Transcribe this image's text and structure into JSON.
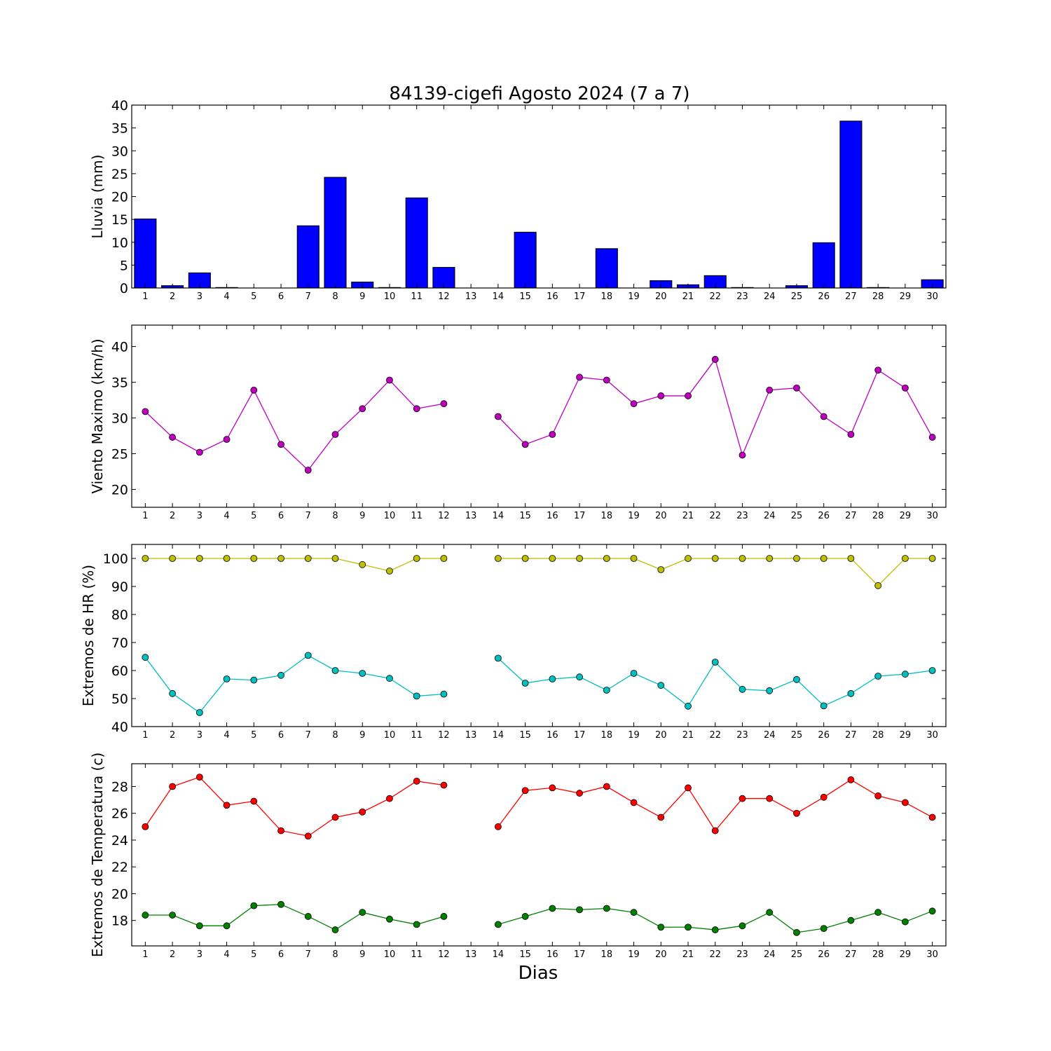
{
  "figure": {
    "title": "84139-cigefi Agosto 2024  (7 a 7)",
    "xlabel": "Dias"
  },
  "chart_data": [
    {
      "type": "bar",
      "ylabel": "Lluvia (mm)",
      "ylim": [
        0,
        40
      ],
      "yticks": [
        0,
        5,
        10,
        15,
        20,
        25,
        30,
        35,
        40
      ],
      "categories": [
        1,
        2,
        3,
        4,
        5,
        6,
        7,
        8,
        9,
        10,
        11,
        12,
        13,
        14,
        15,
        16,
        17,
        18,
        19,
        20,
        21,
        22,
        23,
        24,
        25,
        26,
        27,
        28,
        29,
        30
      ],
      "series": [
        {
          "color": "#0000ff",
          "values": [
            15.1,
            0.5,
            3.3,
            0.1,
            0,
            0,
            13.6,
            24.2,
            1.3,
            0.1,
            19.7,
            4.5,
            0,
            0,
            12.2,
            0,
            0,
            8.6,
            0,
            1.6,
            0.7,
            2.7,
            0.1,
            0,
            0.5,
            9.9,
            36.5,
            0.1,
            0,
            1.8
          ]
        }
      ]
    },
    {
      "type": "line",
      "ylabel": "Viento Maximo (km/h)",
      "ylim": [
        17.5,
        43
      ],
      "yticks": [
        20,
        25,
        30,
        35,
        40
      ],
      "x": [
        1,
        2,
        3,
        4,
        5,
        6,
        7,
        8,
        9,
        10,
        11,
        12,
        13,
        14,
        15,
        16,
        17,
        18,
        19,
        20,
        21,
        22,
        23,
        24,
        25,
        26,
        27,
        28,
        29,
        30
      ],
      "series": [
        {
          "color": "#bf00bf",
          "values": [
            30.9,
            27.3,
            25.2,
            27.0,
            33.9,
            26.3,
            22.7,
            27.7,
            31.3,
            35.3,
            31.3,
            32.0,
            null,
            30.2,
            26.3,
            27.7,
            35.7,
            35.3,
            32.0,
            33.1,
            33.1,
            38.2,
            24.8,
            33.9,
            34.2,
            30.2,
            27.7,
            36.7,
            34.2,
            27.3
          ]
        }
      ]
    },
    {
      "type": "line",
      "ylabel": "Extremos de HR (%)",
      "ylim": [
        40,
        105
      ],
      "yticks": [
        40,
        50,
        60,
        70,
        80,
        90,
        100
      ],
      "x": [
        1,
        2,
        3,
        4,
        5,
        6,
        7,
        8,
        9,
        10,
        11,
        12,
        13,
        14,
        15,
        16,
        17,
        18,
        19,
        20,
        21,
        22,
        23,
        24,
        25,
        26,
        27,
        28,
        29,
        30
      ],
      "series": [
        {
          "color": "#bfbf00",
          "values": [
            100,
            100,
            100,
            100,
            100,
            100,
            100,
            100,
            97.8,
            95.5,
            100,
            100,
            null,
            100,
            100,
            100,
            100,
            100,
            100,
            96,
            100,
            100,
            100,
            100,
            100,
            100,
            100,
            90.3,
            100,
            100
          ]
        },
        {
          "color": "#00bfbf",
          "values": [
            64.7,
            51.8,
            45.0,
            57.0,
            56.6,
            58.3,
            65.4,
            60.0,
            59.0,
            57.2,
            50.9,
            51.6,
            null,
            64.4,
            55.5,
            57.0,
            57.7,
            53.0,
            59.0,
            54.7,
            47.3,
            63.0,
            53.3,
            52.8,
            56.8,
            47.4,
            51.8,
            58.0,
            58.7,
            60.0
          ]
        }
      ]
    },
    {
      "type": "line",
      "ylabel": "Extremos de Temperatura (c)",
      "ylim": [
        16.1,
        29.7
      ],
      "yticks": [
        18,
        20,
        22,
        24,
        26,
        28
      ],
      "x": [
        1,
        2,
        3,
        4,
        5,
        6,
        7,
        8,
        9,
        10,
        11,
        12,
        13,
        14,
        15,
        16,
        17,
        18,
        19,
        20,
        21,
        22,
        23,
        24,
        25,
        26,
        27,
        28,
        29,
        30
      ],
      "series": [
        {
          "color": "#ff0000",
          "values": [
            25.0,
            28.0,
            28.7,
            26.6,
            26.9,
            24.7,
            24.3,
            25.7,
            26.1,
            27.1,
            28.4,
            28.1,
            null,
            25.0,
            27.7,
            27.9,
            27.5,
            28.0,
            26.8,
            25.7,
            27.9,
            24.7,
            27.1,
            27.1,
            26.0,
            27.2,
            28.5,
            27.3,
            26.8,
            25.7
          ]
        },
        {
          "color": "#008000",
          "values": [
            18.4,
            18.4,
            17.6,
            17.6,
            19.1,
            19.2,
            18.3,
            17.3,
            18.6,
            18.1,
            17.7,
            18.3,
            null,
            17.7,
            18.3,
            18.9,
            18.8,
            18.9,
            18.6,
            17.5,
            17.5,
            17.3,
            17.6,
            18.6,
            17.1,
            17.4,
            18.0,
            18.6,
            17.9,
            18.7
          ]
        }
      ]
    }
  ]
}
